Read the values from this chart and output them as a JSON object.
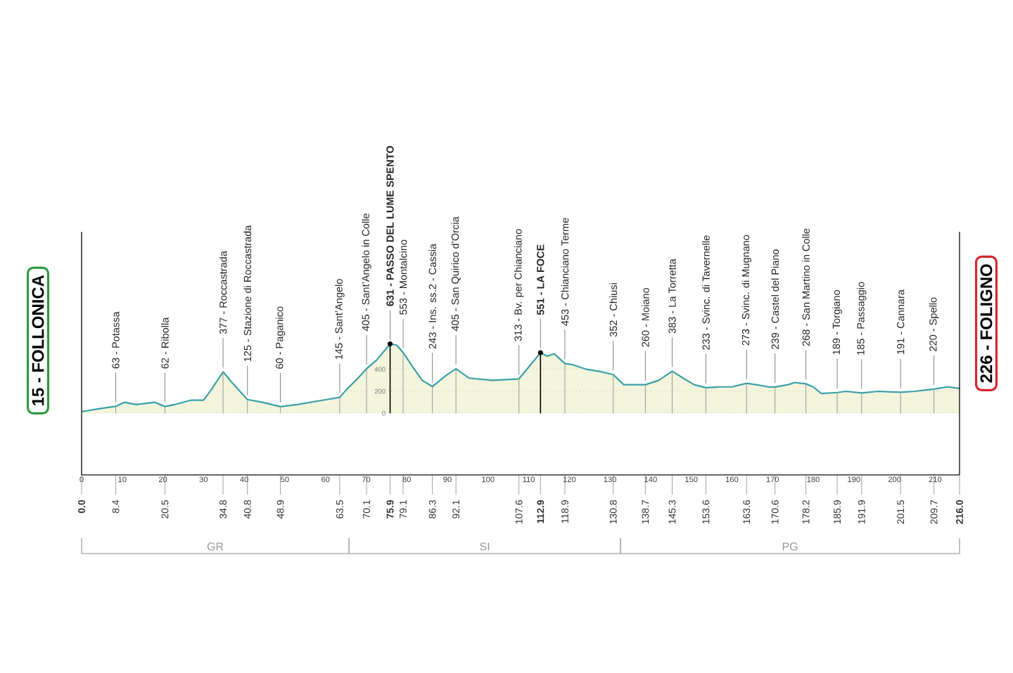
{
  "chart_data": {
    "type": "area",
    "series": [
      {
        "color": "#f3f5dc",
        "x": [
          0,
          4,
          8.4,
          10.5,
          13.4,
          18,
          20.5,
          23,
          27,
          30,
          32,
          34.8,
          37,
          40.8,
          44.5,
          48.9,
          53,
          59.5,
          63.5,
          65.3,
          68,
          70.1,
          72.5,
          75.9,
          77.5,
          79.1,
          81.5,
          83.8,
          86.3,
          89.5,
          92.1,
          95.3,
          101,
          107.6,
          110,
          112.9,
          114.5,
          116.3,
          118.9,
          121,
          124.2,
          127.6,
          130.8,
          133.4,
          138.7,
          142,
          145.3,
          148,
          150.7,
          153.6,
          157,
          160,
          163.6,
          166,
          169,
          170.6,
          173.8,
          175.5,
          178.2,
          180,
          182,
          185.9,
          188,
          191.9,
          196,
          201.5,
          205,
          209.7,
          213,
          216
        ],
        "values": [
          15,
          40,
          63,
          100,
          80,
          100,
          62,
          80,
          120,
          120,
          220,
          377,
          280,
          125,
          100,
          60,
          80,
          120,
          145,
          220,
          320,
          405,
          480,
          631,
          620,
          553,
          420,
          300,
          243,
          340,
          405,
          320,
          300,
          313,
          420,
          551,
          520,
          540,
          453,
          440,
          400,
          380,
          352,
          260,
          260,
          300,
          383,
          320,
          260,
          233,
          240,
          240,
          273,
          260,
          240,
          239,
          260,
          280,
          268,
          240,
          180,
          189,
          200,
          185,
          200,
          191,
          200,
          220,
          240,
          226
        ]
      },
      {
        "type": "bar",
        "color": "#999999",
        "x": [
          8.4,
          20.5,
          34.8,
          40.8,
          48.9,
          63.5,
          70.1,
          79.1,
          86.3,
          92.1,
          107.6,
          118.9,
          130.8,
          138.7,
          145.3,
          153.6,
          163.6,
          170.6,
          178.2,
          185.9,
          191.9,
          201.5,
          209.7
        ],
        "values": [
          63,
          62,
          377,
          125,
          60,
          145,
          405,
          553,
          243,
          405,
          313,
          453,
          352,
          260,
          383,
          233,
          273,
          239,
          268,
          189,
          185,
          191,
          220
        ]
      },
      {
        "type": "lollipop",
        "color": "#000000",
        "marker": "circle",
        "x": [
          75.9,
          112.9
        ],
        "values": [
          631,
          551
        ]
      }
    ],
    "xlim": [
      0,
      216
    ],
    "xticks": [
      0,
      10,
      20,
      30,
      40,
      50,
      60,
      70,
      80,
      90,
      100,
      110,
      120,
      130,
      140,
      150,
      160,
      170,
      180,
      190,
      200,
      210
    ],
    "ylim": [
      -560,
      1650
    ],
    "yticks": [
      0,
      200,
      400
    ],
    "x2lim": [
      0,
      216
    ],
    "x2ticks": [
      {
        "value": 0,
        "label": "0.0"
      },
      8.4,
      20.5,
      34.8,
      40.8,
      48.9,
      63.5,
      70.1,
      75.9,
      79.1,
      86.3,
      92.1,
      107.6,
      112.9,
      118.9,
      130.8,
      138.7,
      145.3,
      153.6,
      163.6,
      170.6,
      178.2,
      185.9,
      191.9,
      201.5,
      209.7,
      {
        "value": 216,
        "label": "216.0"
      }
    ],
    "grid": "y",
    "annotations": [
      {
        "text": "15 - FOLLONICA",
        "x": 0,
        "y": 15
      },
      {
        "text": "63 - Potassa",
        "x": 8.4,
        "y": 63
      },
      {
        "text": "62 - Ribolla",
        "x": 20.5,
        "y": 62
      },
      {
        "text": "377 - Roccastrada",
        "x": 34.8,
        "y": 377
      },
      {
        "text": "125 - Stazione di Roccastrada",
        "x": 40.8,
        "y": 125
      },
      {
        "text": "60 - Paganico",
        "x": 48.9,
        "y": 60
      },
      {
        "text": "145 - Sant’Angelo",
        "x": 63.5,
        "y": 145
      },
      {
        "text": "405 - Sant’Angelo in Colle",
        "x": 70.1,
        "y": 405
      },
      {
        "text": "631 - PASSO DEL LUME SPENTO",
        "x": 75.9,
        "y": 631
      },
      {
        "text": "553 - Montalcino",
        "x": 79.1,
        "y": 553
      },
      {
        "text": "243 - Ins. ss.2 - Cassia",
        "x": 86.3,
        "y": 243
      },
      {
        "text": "405 - San Quirico d’Orcia",
        "x": 92.1,
        "y": 405
      },
      {
        "text": "313 - Bv. per Chianciano",
        "x": 107.6,
        "y": 313
      },
      {
        "text": "551 - LA FOCE",
        "x": 112.9,
        "y": 551
      },
      {
        "text": "453 - Chianciano Terme",
        "x": 118.9,
        "y": 453
      },
      {
        "text": "352 - Chiusi",
        "x": 130.8,
        "y": 352
      },
      {
        "text": "260 - Moiano",
        "x": 138.7,
        "y": 260
      },
      {
        "text": "383 - La Torretta",
        "x": 145.3,
        "y": 383
      },
      {
        "text": "233 - Svinc. di Tavernelle",
        "x": 153.6,
        "y": 233
      },
      {
        "text": "273 - Svinc. di Mugnano",
        "x": 163.6,
        "y": 273
      },
      {
        "text": "239 - Castel del Piano",
        "x": 170.6,
        "y": 239
      },
      {
        "text": "268 - San Martino in Colle",
        "x": 178.2,
        "y": 268
      },
      {
        "text": "189 - Torgiano",
        "x": 185.9,
        "y": 189
      },
      {
        "text": "185 - Passaggio",
        "x": 191.9,
        "y": 185
      },
      {
        "text": "191 - Cannara",
        "x": 201.5,
        "y": 191
      },
      {
        "text": "220 - Spello",
        "x": 209.7,
        "y": 220
      },
      {
        "text": "226 - FOLIGNO",
        "x": 216,
        "y": 226
      },
      "GR",
      "SI",
      "PG"
    ]
  }
}
